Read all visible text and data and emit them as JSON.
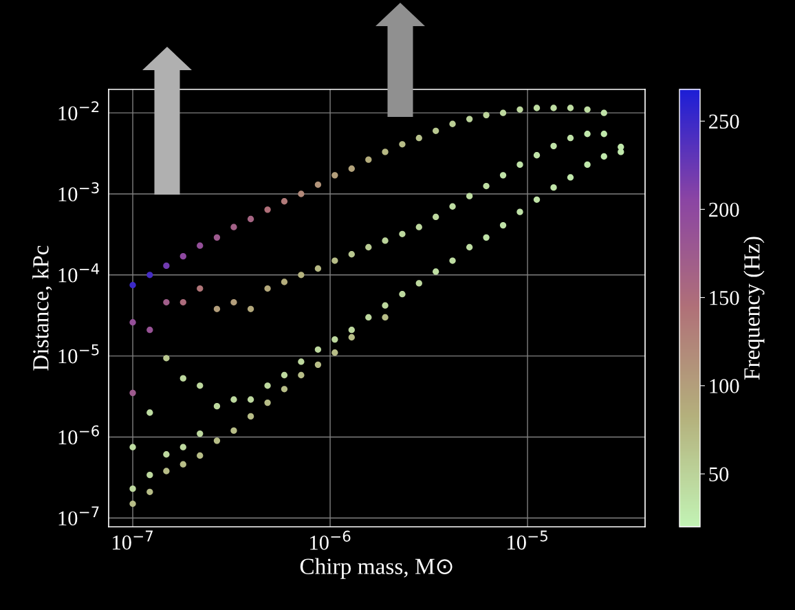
{
  "chart_data": {
    "type": "scatter",
    "xlabel": "Chirp mass, M⊙",
    "ylabel": "Distance, kPc",
    "clabel": "Frequency (Hz)",
    "log": "xy",
    "grid": true,
    "marker": "circle",
    "xlim": [
      7.55e-08,
      3.94e-05
    ],
    "ylim": [
      7.8e-08,
      0.0195
    ],
    "xticks": [
      {
        "value": 1e-07,
        "label": "10$^{−7}$"
      },
      {
        "value": 1e-06,
        "label": "10$^{−6}$"
      },
      {
        "value": 1e-05,
        "label": "10$^{−5}$"
      }
    ],
    "yticks": [
      {
        "value": 1e-07,
        "label": "10$^{−7}$"
      },
      {
        "value": 1e-06,
        "label": "10$^{−6}$"
      },
      {
        "value": 1e-05,
        "label": "10$^{−5}$"
      },
      {
        "value": 0.0001,
        "label": "10$^{−4}$"
      },
      {
        "value": 0.001,
        "label": "10$^{−3}$"
      },
      {
        "value": 0.01,
        "label": "10$^{−2}$"
      }
    ],
    "clim": [
      20,
      268
    ],
    "cticks": [
      50,
      100,
      150,
      200,
      250
    ],
    "colors": [
      "#c2f2b4",
      "#b4b07c",
      "#b07078",
      "#8a44a4",
      "#1c1ed6"
    ],
    "series": [
      {
        "x": [
          1e-07,
          1e-07,
          1e-07,
          1e-07,
          1e-07,
          1e-07,
          1.22e-07,
          1.22e-07,
          1.22e-07,
          1.22e-07,
          1.22e-07,
          1.48e-07,
          1.48e-07,
          1.48e-07,
          1.48e-07,
          1.48e-07,
          1.8e-07,
          1.8e-07,
          1.8e-07,
          1.8e-07,
          1.8e-07,
          2.19e-07,
          2.19e-07,
          2.19e-07,
          2.19e-07,
          2.19e-07,
          2.67e-07,
          2.67e-07,
          2.67e-07,
          2.67e-07,
          3.25e-07,
          3.25e-07,
          3.25e-07,
          3.25e-07,
          3.96e-07,
          3.96e-07,
          3.96e-07,
          3.96e-07,
          4.82e-07,
          4.82e-07,
          4.82e-07,
          4.82e-07,
          5.86e-07,
          5.86e-07,
          5.86e-07,
          5.86e-07,
          7.13e-07,
          7.13e-07,
          7.13e-07,
          7.13e-07,
          8.68e-07,
          8.68e-07,
          8.68e-07,
          8.68e-07,
          1.056e-06,
          1.056e-06,
          1.056e-06,
          1.056e-06,
          1.285e-06,
          1.285e-06,
          1.285e-06,
          1.285e-06,
          1.564e-06,
          1.564e-06,
          1.564e-06,
          1.9e-06,
          1.9e-06,
          1.9e-06,
          1.9e-06,
          2.32e-06,
          2.32e-06,
          2.32e-06,
          2.82e-06,
          2.82e-06,
          2.82e-06,
          3.43e-06,
          3.43e-06,
          3.43e-06,
          4.17e-06,
          4.17e-06,
          4.17e-06,
          5.08e-06,
          5.08e-06,
          5.08e-06,
          6.18e-06,
          6.18e-06,
          6.18e-06,
          7.52e-06,
          7.52e-06,
          7.52e-06,
          9.15e-06,
          9.15e-06,
          9.15e-06,
          1.114e-05,
          1.114e-05,
          1.114e-05,
          1.356e-05,
          1.356e-05,
          1.356e-05,
          1.65e-05,
          1.65e-05,
          1.65e-05,
          2.01e-05,
          2.01e-05,
          2.01e-05,
          2.44e-05,
          2.44e-05,
          2.44e-05,
          2.97e-05,
          2.97e-05
        ],
        "values": [
          7.5e-05,
          2.6e-05,
          3.5e-06,
          7.5e-07,
          2.3e-07,
          1.5e-07,
          0.0001,
          2.1e-05,
          2e-06,
          3.4e-07,
          2.1e-07,
          0.00013,
          4.6e-05,
          9.4e-06,
          6.1e-07,
          3.8e-07,
          0.00017,
          4.6e-05,
          5.3e-06,
          7.5e-07,
          4.6e-07,
          0.00023,
          6.8e-05,
          4.3e-06,
          1.1e-06,
          5.9e-07,
          0.00029,
          3.8e-05,
          2.4e-06,
          9e-07,
          0.00039,
          4.6e-05,
          2.9e-06,
          1.2e-06,
          0.00049,
          3.8e-05,
          2.9e-06,
          1.8e-06,
          0.00064,
          6.8e-05,
          4.3e-06,
          2.65e-06,
          0.00081,
          8.2e-05,
          5.8e-06,
          3.9e-06,
          0.001,
          0.0001,
          8.5e-06,
          5.8e-06,
          0.0013,
          0.00012,
          1.2e-05,
          7.8e-06,
          0.0017,
          0.00015,
          1.6e-05,
          1.1e-05,
          0.00205,
          0.00018,
          2.1e-05,
          1.7e-05,
          0.00265,
          0.00022,
          3e-05,
          0.0033,
          0.000265,
          4.2e-05,
          3e-05,
          0.0041,
          0.00032,
          5.8e-05,
          0.0049,
          0.00039,
          7.9e-05,
          0.006,
          0.00052,
          0.00011,
          0.0073,
          0.0007,
          0.00015,
          0.0084,
          0.00094,
          0.00022,
          0.0094,
          0.00125,
          0.00029,
          0.01,
          0.0017,
          0.00041,
          0.011,
          0.0023,
          0.0006,
          0.0115,
          0.003,
          0.00085,
          0.0115,
          0.0039,
          0.0012,
          0.0115,
          0.0049,
          0.0016,
          0.011,
          0.0055,
          0.0023,
          0.01,
          0.0055,
          0.0029,
          0.0038,
          0.0033
        ],
        "cvalues": [
          250,
          190,
          175,
          40,
          45,
          70,
          245,
          185,
          40,
          45,
          70,
          220,
          170,
          60,
          45,
          70,
          200,
          150,
          45,
          45,
          70,
          190,
          140,
          45,
          45,
          70,
          175,
          100,
          45,
          70,
          165,
          100,
          45,
          70,
          160,
          90,
          45,
          70,
          145,
          90,
          45,
          70,
          135,
          85,
          45,
          70,
          120,
          80,
          45,
          70,
          110,
          75,
          45,
          70,
          100,
          70,
          45,
          70,
          95,
          60,
          45,
          70,
          85,
          55,
          45,
          75,
          50,
          45,
          70,
          70,
          45,
          45,
          65,
          45,
          45,
          60,
          45,
          40,
          55,
          40,
          40,
          50,
          40,
          40,
          50,
          40,
          35,
          45,
          35,
          35,
          45,
          35,
          35,
          40,
          35,
          35,
          40,
          35,
          35,
          40,
          35,
          30,
          40,
          30,
          30,
          35,
          30,
          30,
          30,
          30
        ]
      }
    ]
  }
}
